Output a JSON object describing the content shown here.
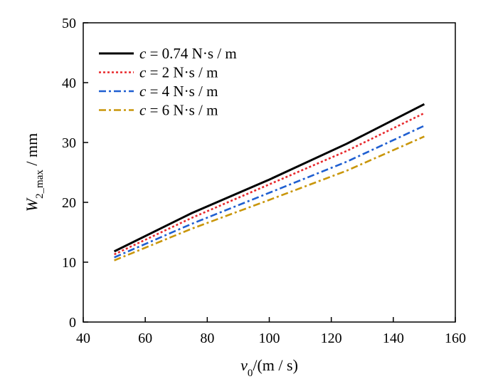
{
  "chart_data": {
    "type": "line",
    "xlabel": {
      "var": "v",
      "sub": "0",
      "unit": "/(m / s)"
    },
    "ylabel": {
      "var": "W",
      "sub": "2_max",
      "unit": " / mm"
    },
    "xlim": [
      40,
      160
    ],
    "ylim": [
      0,
      50
    ],
    "xticks": [
      40,
      60,
      80,
      100,
      120,
      140,
      160
    ],
    "yticks": [
      0,
      10,
      20,
      30,
      40,
      50
    ],
    "grid": false,
    "legend_position": "top-left",
    "x": [
      50,
      75,
      100,
      125,
      150
    ],
    "series": [
      {
        "name": "c = 0.74 N·s / m",
        "var": "c",
        "text": " = 0.74 N·s / m",
        "color": "#000000",
        "dash": "solid",
        "values": [
          11.8,
          18.2,
          23.8,
          29.8,
          36.4
        ]
      },
      {
        "name": "c = 2 N·s / m",
        "var": "c",
        "text": " = 2 N·s / m",
        "color": "#e8282c",
        "dash": "dot",
        "values": [
          11.3,
          17.4,
          23.0,
          28.6,
          34.9
        ]
      },
      {
        "name": "c = 4 N·s / m",
        "var": "c",
        "text": " = 4 N·s / m",
        "color": "#1f5fd1",
        "dash": "dashdot",
        "values": [
          10.8,
          16.4,
          21.6,
          26.8,
          32.8
        ]
      },
      {
        "name": "c = 6 N·s / m",
        "var": "c",
        "text": " = 6 N·s / m",
        "color": "#c9960a",
        "dash": "dashdot",
        "values": [
          10.3,
          15.6,
          20.4,
          25.3,
          31.0
        ]
      }
    ]
  }
}
